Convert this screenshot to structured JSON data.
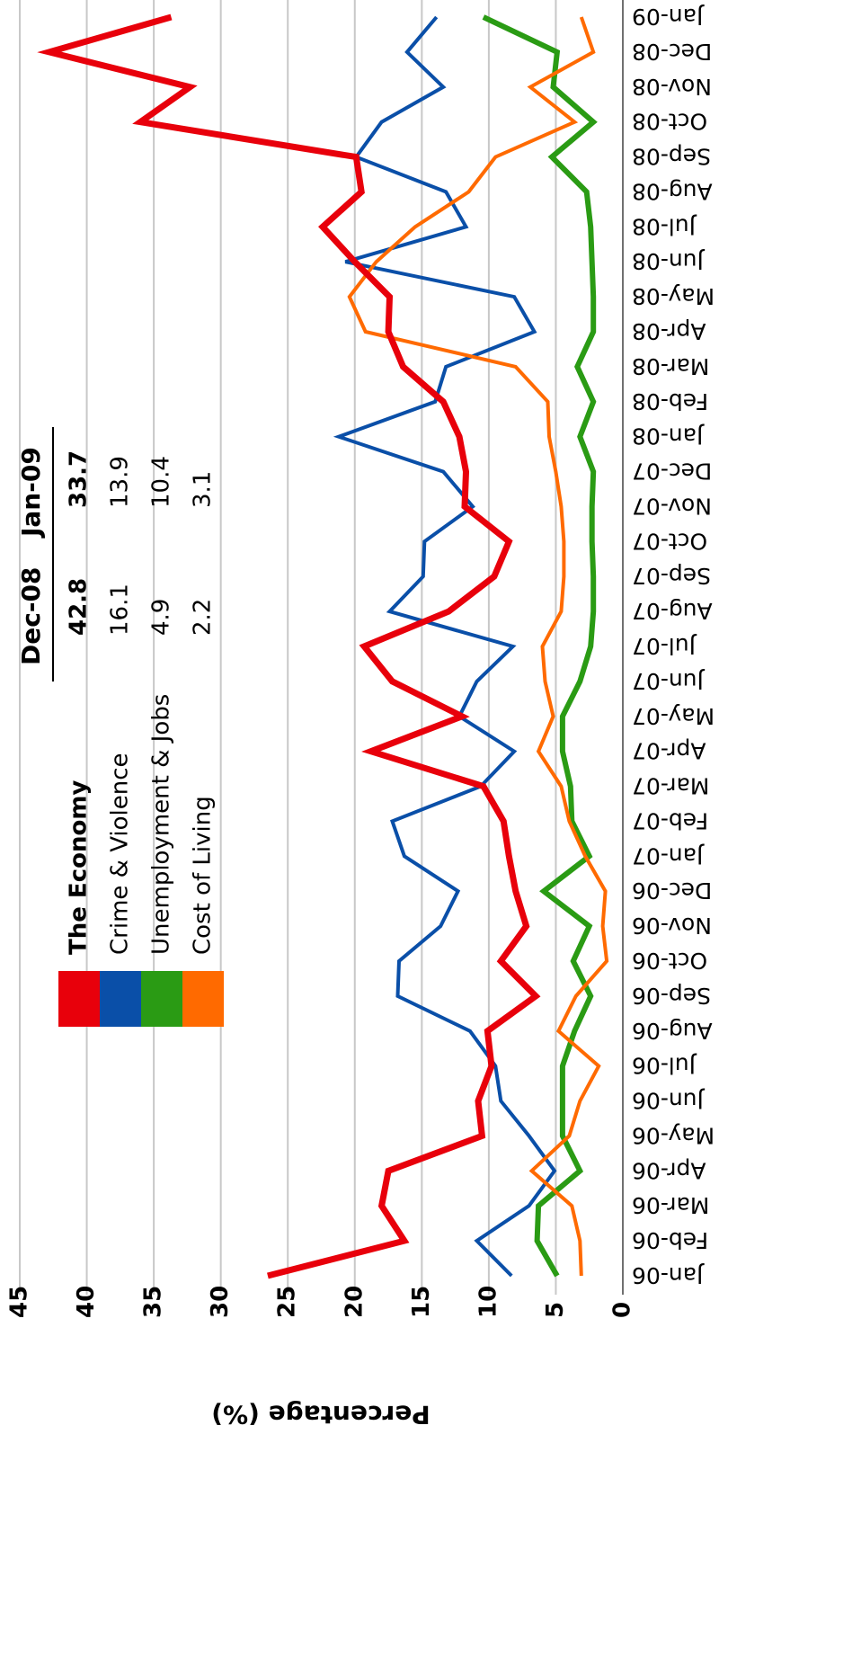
{
  "chart_data": {
    "type": "line",
    "title": "",
    "xlabel": "",
    "ylabel": "Percentage (%)",
    "ylim": [
      0,
      45
    ],
    "yticks": [
      0,
      5,
      10,
      15,
      20,
      25,
      30,
      35,
      40,
      45
    ],
    "grid": true,
    "orientation": "rotated-180",
    "categories": [
      "Jan-06",
      "Feb-06",
      "Mar-06",
      "Apr-06",
      "May-06",
      "Jun-06",
      "Jul-06",
      "Aug-06",
      "Sep-06",
      "Oct-06",
      "Nov-06",
      "Dec-06",
      "Jan-07",
      "Feb-07",
      "Mar-07",
      "Apr-07",
      "May-07",
      "Jun-07",
      "Jul-07",
      "Aug-07",
      "Sep-07",
      "Oct-07",
      "Nov-07",
      "Dec-07",
      "Jan-08",
      "Feb-08",
      "Mar-08",
      "Apr-08",
      "May-08",
      "Jun-08",
      "Jul-08",
      "Aug-08",
      "Sep-08",
      "Oct-08",
      "Nov-08",
      "Dec-08",
      "Jan-09"
    ],
    "series": [
      {
        "name": "The Economy",
        "color": "#e8000b",
        "stroke_width": 7,
        "values": [
          26.5,
          16.3,
          18.0,
          17.5,
          10.5,
          10.8,
          9.8,
          10.1,
          6.5,
          9.1,
          7.2,
          8.0,
          8.5,
          8.9,
          10.4,
          18.8,
          12.0,
          17.2,
          19.3,
          13.0,
          9.6,
          8.5,
          11.8,
          11.7,
          12.2,
          13.4,
          16.4,
          17.5,
          17.4,
          20.0,
          22.4,
          19.5,
          19.9,
          36.0,
          32.3,
          42.8,
          33.7
        ]
      },
      {
        "name": "Crime & Violence",
        "color": "#0a4fa8",
        "stroke_width": 4,
        "values": [
          8.3,
          10.9,
          7.0,
          5.1,
          7.0,
          9.1,
          9.5,
          11.4,
          16.8,
          16.7,
          13.6,
          12.3,
          16.3,
          17.2,
          10.6,
          8.1,
          12.2,
          10.9,
          8.2,
          17.4,
          14.9,
          14.8,
          11.2,
          13.4,
          21.2,
          14.0,
          13.2,
          6.6,
          8.1,
          20.7,
          11.7,
          13.2,
          19.9,
          18.0,
          13.4,
          16.1,
          13.9
        ]
      },
      {
        "name": "Unemployment & Jobs",
        "color": "#2a9b14",
        "stroke_width": 6,
        "values": [
          4.9,
          6.4,
          6.3,
          3.2,
          4.5,
          4.5,
          4.5,
          3.6,
          2.4,
          3.7,
          2.5,
          5.9,
          2.5,
          3.8,
          3.9,
          4.5,
          4.5,
          3.2,
          2.4,
          2.2,
          2.2,
          2.3,
          2.3,
          2.2,
          3.2,
          2.2,
          3.4,
          2.2,
          2.2,
          2.3,
          2.4,
          2.7,
          5.3,
          2.2,
          5.2,
          4.9,
          10.4
        ]
      },
      {
        "name": "Cost of Living",
        "color": "#ff6a00",
        "stroke_width": 4,
        "values": [
          3.1,
          3.2,
          3.8,
          6.8,
          4.0,
          3.2,
          1.8,
          4.8,
          3.5,
          1.2,
          1.5,
          1.3,
          2.8,
          4.0,
          4.6,
          6.3,
          5.2,
          5.8,
          6.0,
          4.6,
          4.4,
          4.4,
          4.6,
          5.0,
          5.5,
          5.6,
          8.0,
          19.2,
          20.4,
          18.4,
          15.5,
          11.5,
          9.5,
          3.6,
          6.9,
          2.2,
          3.1
        ]
      }
    ],
    "legend": {
      "placement": "inset-top",
      "columns": [
        "Dec-08",
        "Jan-09"
      ],
      "rows": [
        {
          "name": "The Economy",
          "color": "#e8000b",
          "dec08": "42.8",
          "jan09": "33.7",
          "bold": true
        },
        {
          "name": "Crime & Violence",
          "color": "#0a4fa8",
          "dec08": "16.1",
          "jan09": "13.9",
          "bold": false
        },
        {
          "name": "Unemployment & Jobs",
          "color": "#2a9b14",
          "dec08": "4.9",
          "jan09": "10.4",
          "bold": false
        },
        {
          "name": "Cost of Living",
          "color": "#ff6a00",
          "dec08": "2.2",
          "jan09": "3.1",
          "bold": false
        }
      ]
    }
  }
}
